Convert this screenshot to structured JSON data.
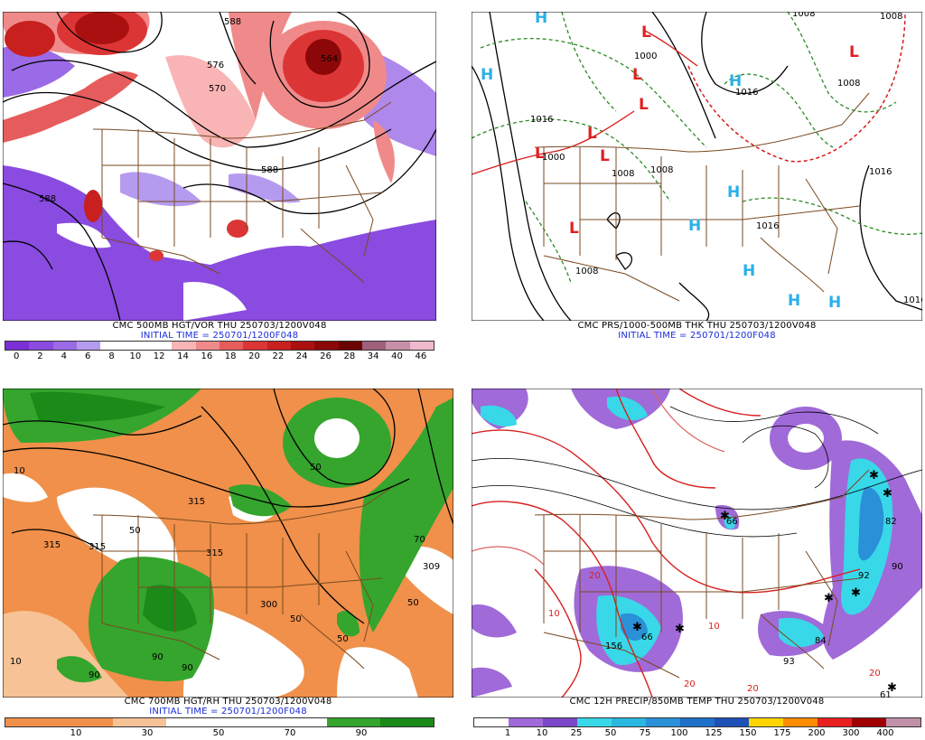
{
  "panels": [
    {
      "id": "hgt-vor",
      "title": "CMC 500MB HGT/VOR THU 250703/1200V048",
      "initial": "INITIAL TIME = 250701/1200F048",
      "colorbar": {
        "labels": [
          "0",
          "2",
          "4",
          "6",
          "8",
          "10",
          "12",
          "14",
          "16",
          "18",
          "20",
          "22",
          "24",
          "26",
          "28",
          "34",
          "40",
          "46"
        ],
        "colors": [
          "#7b2fd6",
          "#8a4be0",
          "#9b6ae6",
          "#b59bef",
          "#ffffff",
          "#ffffff",
          "#ffffff",
          "#f9b5b5",
          "#f08a8a",
          "#e65c5c",
          "#dc3535",
          "#c81f1f",
          "#ab1010",
          "#8c0808",
          "#6a0404",
          "#a0607a",
          "#c890a8",
          "#f0b8cc"
        ]
      },
      "contour_labels": [
        "588",
        "576",
        "570",
        "588",
        "588",
        "564"
      ]
    },
    {
      "id": "prs-thk",
      "title": "CMC PRS/1000-500MB THK THU 250703/1200V048",
      "initial": "INITIAL TIME = 250701/1200F048",
      "pressure_labels": [
        "1016",
        "1008",
        "1000",
        "1008",
        "1016",
        "1008",
        "1016",
        "1016",
        "1008",
        "1008",
        "1016",
        "1008",
        "1000"
      ],
      "high_marker": "H",
      "low_marker": "L"
    },
    {
      "id": "hgt-rh",
      "title": "CMC 700MB HGT/RH THU 250703/1200V048",
      "initial": "INITIAL TIME = 250701/1200F048",
      "colorbar": {
        "labels": [
          "10",
          "30",
          "50",
          "70",
          "90"
        ],
        "colors": [
          "#f0904a",
          "#f0904a",
          "#f7c296",
          "#ffffff",
          "#ffffff",
          "#ffffff",
          "#35a52d",
          "#1a8a18"
        ]
      },
      "contour_labels": [
        "315",
        "315",
        "315",
        "315",
        "300",
        "309",
        "50",
        "50",
        "10",
        "50",
        "70",
        "90",
        "90",
        "90",
        "50",
        "10",
        "50"
      ]
    },
    {
      "id": "precip-temp",
      "title": "CMC 12H PRECIP/850MB TEMP THU 250703/1200V048",
      "colorbar": {
        "labels": [
          "1",
          "10",
          "25",
          "50",
          "75",
          "100",
          "125",
          "150",
          "175",
          "200",
          "300",
          "400"
        ],
        "colors": [
          "#ffffff",
          "#a06ad8",
          "#7a48c8",
          "#38d8e8",
          "#2ab8e0",
          "#2a90d8",
          "#1e70c8",
          "#1e50b8",
          "#ffd400",
          "#ff8c00",
          "#e82020",
          "#a00000",
          "#c090a8"
        ]
      },
      "contour_labels": [
        "10",
        "20",
        "20",
        "10",
        "20",
        "20",
        "156",
        "66",
        "84",
        "93",
        "82",
        "92",
        "61",
        "66",
        "90"
      ]
    }
  ]
}
